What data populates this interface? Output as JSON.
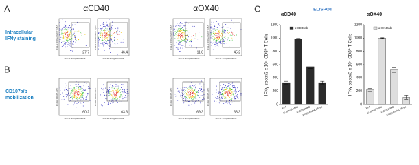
{
  "figure": {
    "panel_labels": [
      "A",
      "B",
      "C"
    ],
    "column_headers": [
      "αCD40",
      "αOX40"
    ],
    "row_labels": [
      [
        "Intracellular",
        "IFNγ staining"
      ],
      [
        "CD107a/b",
        "mobilization"
      ]
    ],
    "elispot_title": "ELISPOT"
  },
  "flow_rows": [
    {
      "y_axis_label": "FL3-H: CD8a PerCP Cy5.5",
      "x_axis_label": "FL2-H: IFN-gamma-PE",
      "percentages": [
        "27.7",
        "46.4",
        "11.8",
        "45.2"
      ]
    },
    {
      "y_axis_label": "FL4-H: CD107-APC",
      "x_axis_label": "FL2-H: IFN-gamma-PE",
      "percentages": [
        "60.2",
        "63.6",
        "69.3",
        "68.3"
      ]
    }
  ],
  "chart_data": [
    {
      "type": "bar",
      "title": "αCD40",
      "y_label": "IFNγ spots/3 x 10⁴ CD8⁺ T Cells",
      "categories": [
        "EL4",
        "EL4/Pool-MHC",
        "B16F10/MHC",
        "B16F10/MHC/IFN-γ"
      ],
      "series": [
        {
          "name": "α-CD40ab",
          "color": "#2b2b2b",
          "values": [
            330,
            990,
            570,
            330
          ],
          "errors": [
            20,
            5,
            25,
            20
          ]
        }
      ],
      "ylim": [
        0,
        1200
      ],
      "yticks": [
        0,
        200,
        400,
        600,
        800,
        1000,
        1200
      ]
    },
    {
      "type": "bar",
      "title": "αOX40",
      "y_label": "IFNγ spots/3 x 10⁴ CD8⁺ T Cells",
      "categories": [
        "EL4",
        "EL4/Pool-MHC",
        "B16F10/MHC",
        "B16F10/MHC/IFN-γ"
      ],
      "series": [
        {
          "name": "α-OX40ab",
          "color": "#d9d9d9",
          "values": [
            220,
            1000,
            520,
            110
          ],
          "errors": [
            25,
            5,
            35,
            30
          ]
        }
      ],
      "ylim": [
        0,
        1200
      ],
      "yticks": [
        0,
        200,
        400,
        600,
        800,
        1000,
        1200
      ]
    }
  ]
}
